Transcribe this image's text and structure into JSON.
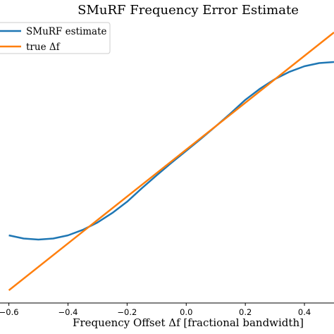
{
  "chart_data": {
    "type": "line",
    "title": "SMuRF Frequency Error Estimate",
    "xlabel": "Frequency Offset Δf [fractional bandwidth]",
    "ylabel": "",
    "xlim": [
      -0.63,
      0.5
    ],
    "ylim": [
      -0.62,
      0.72
    ],
    "grid": false,
    "legend_position": "top-left",
    "x_ticks": [
      {
        "value": -0.6,
        "label": "−0.6"
      },
      {
        "value": -0.4,
        "label": "−0.4"
      },
      {
        "value": -0.2,
        "label": "−0.2"
      },
      {
        "value": 0.0,
        "label": "0.0"
      },
      {
        "value": 0.2,
        "label": "0.2"
      },
      {
        "value": 0.4,
        "label": "0.4"
      }
    ],
    "series": [
      {
        "name": "SMuRF estimate",
        "color": "#1f77b4",
        "x": [
          -0.6,
          -0.55,
          -0.5,
          -0.45,
          -0.4,
          -0.35,
          -0.3,
          -0.25,
          -0.2,
          -0.15,
          -0.1,
          -0.05,
          0.0,
          0.05,
          0.1,
          0.15,
          0.2,
          0.25,
          0.3,
          0.35,
          0.4,
          0.45,
          0.5
        ],
        "y": [
          -0.3,
          -0.315,
          -0.32,
          -0.315,
          -0.3,
          -0.274,
          -0.239,
          -0.194,
          -0.141,
          -0.077,
          -0.016,
          0.043,
          0.1,
          0.157,
          0.216,
          0.277,
          0.341,
          0.394,
          0.439,
          0.474,
          0.5,
          0.515,
          0.52
        ]
      },
      {
        "name": "true Δf",
        "color": "#ff7f0e",
        "x": [
          -0.6,
          0.5
        ],
        "y": [
          -0.56,
          0.66
        ]
      }
    ]
  }
}
